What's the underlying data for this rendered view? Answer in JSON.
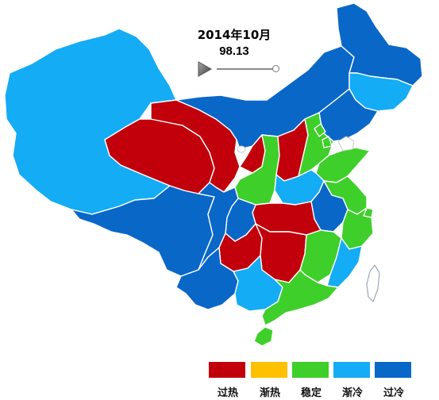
{
  "animation": {
    "frame_label": "2014年10月",
    "index_value": "98.13",
    "progress": 1.0
  },
  "colors": {
    "overheat": "#c1000c",
    "warming": "#ffc000",
    "stable": "#3ecf2a",
    "cooling": "#14acf4",
    "overcool": "#0967c8"
  },
  "legend": [
    {
      "label": "过热",
      "color_key": "overheat"
    },
    {
      "label": "渐热",
      "color_key": "warming"
    },
    {
      "label": "稳定",
      "color_key": "stable"
    },
    {
      "label": "渐冷",
      "color_key": "cooling"
    },
    {
      "label": "过冷",
      "color_key": "overcool"
    }
  ],
  "regions": [
    {
      "id": "xinjiang",
      "status": "cooling"
    },
    {
      "id": "xizang",
      "status": "overcool"
    },
    {
      "id": "qinghai",
      "status": "overheat"
    },
    {
      "id": "gansu",
      "status": "overheat"
    },
    {
      "id": "neimenggu",
      "status": "overcool"
    },
    {
      "id": "heilongjiang",
      "status": "overcool"
    },
    {
      "id": "jilin",
      "status": "cooling"
    },
    {
      "id": "liaoning",
      "status": "overcool"
    },
    {
      "id": "ningxia",
      "status": "overheat"
    },
    {
      "id": "shaanxi",
      "status": "stable"
    },
    {
      "id": "shanxi",
      "status": "overheat"
    },
    {
      "id": "hebei",
      "status": "stable"
    },
    {
      "id": "beijing",
      "status": "stable"
    },
    {
      "id": "tianjin",
      "status": "stable"
    },
    {
      "id": "shandong",
      "status": "stable"
    },
    {
      "id": "henan",
      "status": "cooling"
    },
    {
      "id": "jiangsu",
      "status": "stable"
    },
    {
      "id": "anhui",
      "status": "overcool"
    },
    {
      "id": "shanghai",
      "status": "stable"
    },
    {
      "id": "zhejiang",
      "status": "stable"
    },
    {
      "id": "hubei",
      "status": "overheat"
    },
    {
      "id": "chongqing",
      "status": "overcool"
    },
    {
      "id": "sichuan",
      "status": "overcool"
    },
    {
      "id": "guizhou",
      "status": "overheat"
    },
    {
      "id": "hunan",
      "status": "overheat"
    },
    {
      "id": "jiangxi",
      "status": "stable"
    },
    {
      "id": "fujian",
      "status": "cooling"
    },
    {
      "id": "yunnan",
      "status": "overcool"
    },
    {
      "id": "guangxi",
      "status": "cooling"
    },
    {
      "id": "guangdong",
      "status": "stable"
    },
    {
      "id": "hainan",
      "status": "stable"
    },
    {
      "id": "taiwan",
      "status": "unassigned"
    }
  ]
}
